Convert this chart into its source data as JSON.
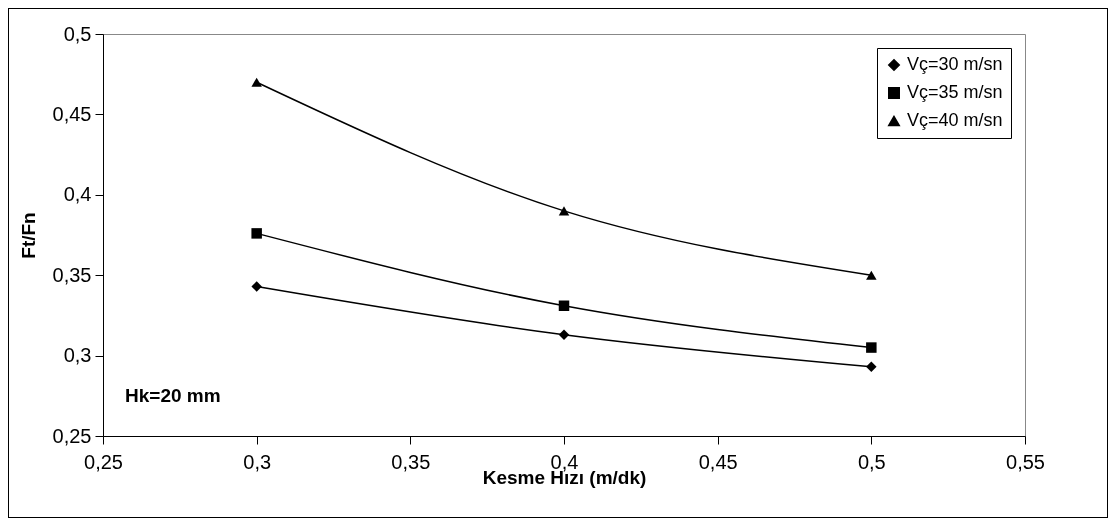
{
  "chart_data": {
    "type": "line",
    "xlabel": "Kesme Hızı (m/dk)",
    "ylabel": "Ft/Fn",
    "annotations": [
      "Hk=20 mm"
    ],
    "x": [
      0.3,
      0.4,
      0.5
    ],
    "series": [
      {
        "name": "Vç=30 m/sn",
        "color": "#000000",
        "marker": "diamond",
        "values": [
          0.343,
          0.313,
          0.293
        ]
      },
      {
        "name": "Vç=35 m/sn",
        "color": "#000000",
        "marker": "square",
        "values": [
          0.376,
          0.331,
          0.305
        ]
      },
      {
        "name": "Vç=40 m/sn",
        "color": "#000000",
        "marker": "triangle",
        "values": [
          0.47,
          0.39,
          0.35
        ]
      }
    ],
    "xlim": [
      0.25,
      0.55
    ],
    "xticks": [
      {
        "value": 0.25,
        "label": "0,25"
      },
      {
        "value": 0.3,
        "label": "0,3"
      },
      {
        "value": 0.35,
        "label": "0,35"
      },
      {
        "value": 0.4,
        "label": "0,4"
      },
      {
        "value": 0.45,
        "label": "0,45"
      },
      {
        "value": 0.5,
        "label": "0,5"
      },
      {
        "value": 0.55,
        "label": "0,55"
      }
    ],
    "ylim": [
      0.25,
      0.5
    ],
    "yticks": [
      {
        "value": 0.25,
        "label": "0,25"
      },
      {
        "value": 0.3,
        "label": "0,3"
      },
      {
        "value": 0.35,
        "label": "0,35"
      },
      {
        "value": 0.4,
        "label": "0,4"
      },
      {
        "value": 0.45,
        "label": "0,45"
      },
      {
        "value": 0.5,
        "label": "0,5"
      }
    ],
    "grid": false,
    "legend": "top right",
    "line_style": "solid"
  }
}
